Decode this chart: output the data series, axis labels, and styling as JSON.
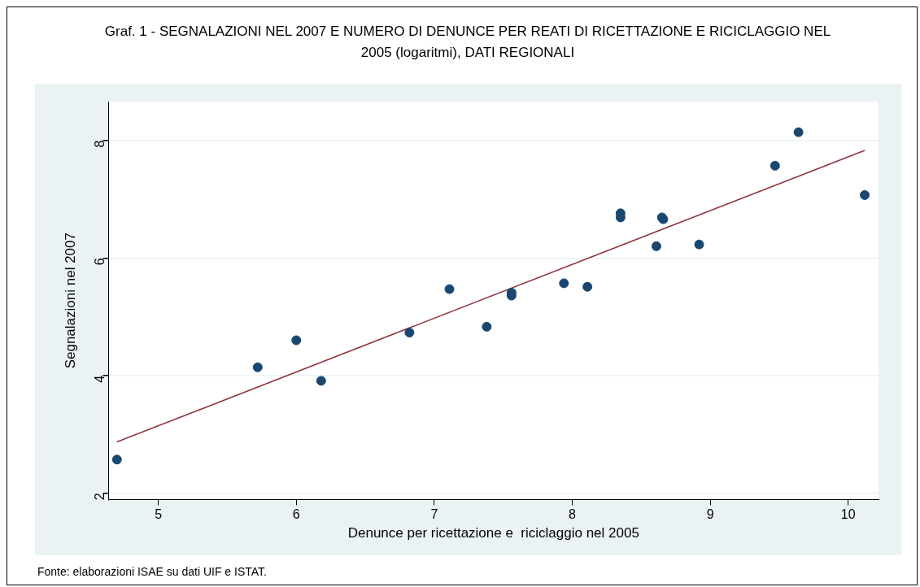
{
  "chart_data": {
    "type": "scatter",
    "title": "Graf. 1 - SEGNALAZIONI NEL 2007 E NUMERO DI DENUNCE PER REATI DI RICETTAZIONE E RICICLAGGIO NEL 2005 (logaritmi), DATI REGIONALI",
    "xlabel": "Denunce per ricettazione e  riciclaggio nel 2005",
    "ylabel": "Segnalazioni nel 2007",
    "annotations": [
      "Fonte: elaborazioni ISAE su dati UIF e ISTAT."
    ],
    "series": [
      {
        "color": "#1a476f",
        "x": [
          4.7,
          5.72,
          6.0,
          6.18,
          6.82,
          7.11,
          7.38,
          7.56,
          7.56,
          7.94,
          8.11,
          8.35,
          8.35,
          8.61,
          8.65,
          8.66,
          8.92,
          9.47,
          9.64,
          10.12
        ],
        "values": [
          2.57,
          4.14,
          4.6,
          3.91,
          4.73,
          5.47,
          4.83,
          5.41,
          5.36,
          5.57,
          5.51,
          6.76,
          6.69,
          6.2,
          6.69,
          6.66,
          6.23,
          7.57,
          8.14,
          7.07
        ]
      },
      {
        "type": "line",
        "color": "#90353b",
        "x": [
          4.7,
          10.12
        ],
        "values": [
          2.87,
          7.83
        ],
        "marker": "none"
      }
    ],
    "xlim": [
      4.64,
      10.22
    ],
    "xticks": [
      5,
      6,
      7,
      8,
      9,
      10
    ],
    "ylim": [
      1.89,
      8.66
    ],
    "yticks": [
      2,
      4,
      6,
      8
    ],
    "grid": "y",
    "marker": "circle",
    "legend": false
  }
}
